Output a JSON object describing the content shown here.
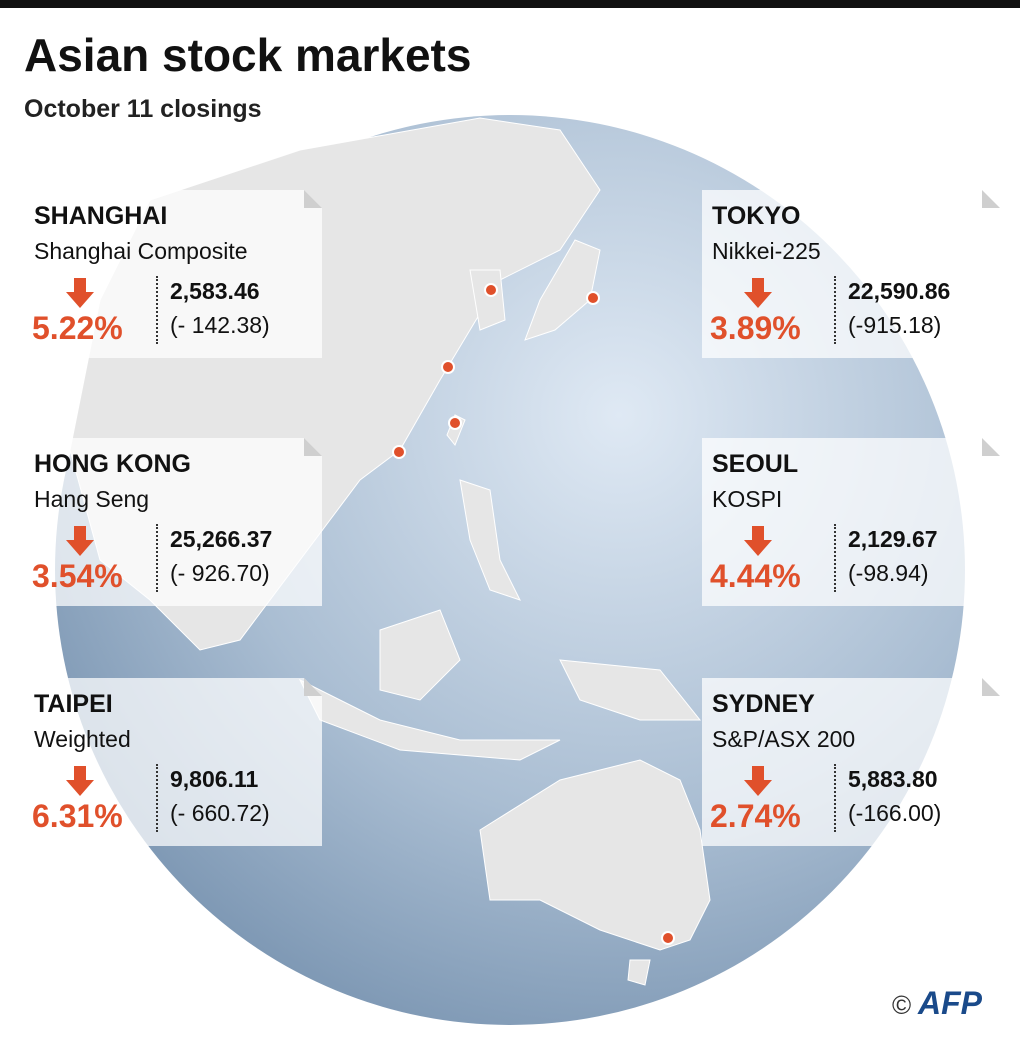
{
  "header": {
    "title": "Asian stock markets",
    "subtitle": "October 11 closings"
  },
  "markets": [
    {
      "city": "SHANGHAI",
      "index": "Shanghai Composite",
      "change_pct": "5.22%",
      "close": "2,583.46",
      "change": "(- 142.38)"
    },
    {
      "city": "HONG KONG",
      "index": "Hang Seng",
      "change_pct": "3.54%",
      "close": "25,266.37",
      "change": "(- 926.70)"
    },
    {
      "city": "TAIPEI",
      "index": "Weighted",
      "change_pct": "6.31%",
      "close": "9,806.11",
      "change": "(- 660.72)"
    },
    {
      "city": "TOKYO",
      "index": "Nikkei-225",
      "change_pct": "3.89%",
      "close": "22,590.86",
      "change": "(-915.18)"
    },
    {
      "city": "SEOUL",
      "index": "KOSPI",
      "change_pct": "4.44%",
      "close": "2,129.67",
      "change": "(-98.94)"
    },
    {
      "city": "SYDNEY",
      "index": "S&P/ASX 200",
      "change_pct": "2.74%",
      "close": "5,883.80",
      "change": "(-166.00)"
    }
  ],
  "credit": {
    "symbol": "©",
    "name": "AFP"
  }
}
